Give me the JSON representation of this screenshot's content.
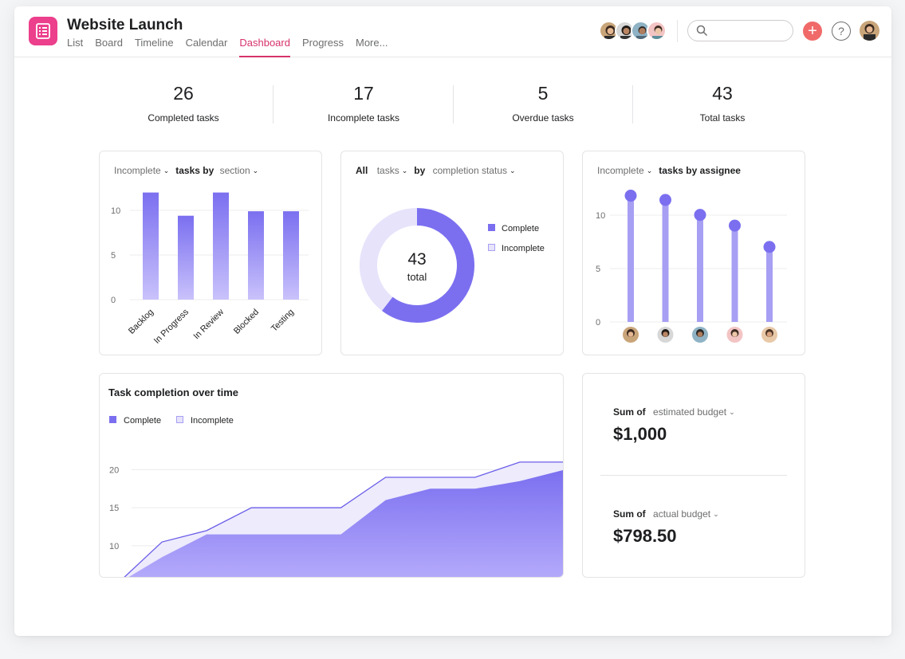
{
  "project": {
    "title": "Website Launch"
  },
  "tabs": [
    {
      "label": "List"
    },
    {
      "label": "Board"
    },
    {
      "label": "Timeline"
    },
    {
      "label": "Calendar"
    },
    {
      "label": "Dashboard",
      "active": true
    },
    {
      "label": "Progress"
    },
    {
      "label": "More..."
    }
  ],
  "icons": {
    "app": "checklist-icon",
    "search": "search-icon",
    "add": "plus-icon",
    "help": "question-icon"
  },
  "colors": {
    "brand": "#ec3f8c",
    "accent": "#d6336c",
    "complete": "#7b6ff0",
    "incomplete": "#e6e3fb",
    "add": "#f06a6a"
  },
  "stats": [
    {
      "value": "26",
      "label": "Completed tasks"
    },
    {
      "value": "17",
      "label": "Incomplete tasks"
    },
    {
      "value": "5",
      "label": "Overdue tasks"
    },
    {
      "value": "43",
      "label": "Total tasks"
    }
  ],
  "section_card": {
    "filter": "Incomplete",
    "title": "tasks by",
    "group": "section",
    "chart_data": {
      "type": "bar",
      "categories": [
        "Backlog",
        "In Progress",
        "In Review",
        "Blocked",
        "Testing"
      ],
      "values": [
        12,
        9.4,
        12,
        9.9,
        9.9
      ],
      "yticks": [
        0,
        5,
        10
      ],
      "ylim": [
        0,
        13
      ]
    }
  },
  "status_card": {
    "filter_all": "All",
    "filter_tasks": "tasks",
    "by": "by",
    "group": "completion status",
    "center_value": "43",
    "center_label": "total",
    "chart_data": {
      "type": "pie",
      "labels": [
        "Complete",
        "Incomplete"
      ],
      "values": [
        26,
        17
      ]
    }
  },
  "assignee_card": {
    "filter": "Incomplete",
    "title": "tasks by assignee",
    "chart_data": {
      "type": "bar",
      "categories": [
        "assignee-1",
        "assignee-2",
        "assignee-3",
        "assignee-4",
        "assignee-5"
      ],
      "values": [
        11.6,
        11.2,
        9.8,
        8.8,
        6.8
      ],
      "yticks": [
        0,
        5,
        10
      ],
      "ylim": [
        0,
        12.5
      ]
    }
  },
  "time_card": {
    "title": "Task completion over time",
    "chart_data": {
      "type": "area",
      "x": [
        0,
        1,
        2,
        3,
        4,
        5,
        6,
        7,
        8,
        9,
        10
      ],
      "series": [
        {
          "name": "Complete",
          "values": [
            5,
            8.5,
            11.5,
            11.5,
            11.5,
            11.5,
            16,
            17.5,
            17.5,
            18.5,
            20
          ]
        },
        {
          "name": "Incomplete",
          "values": [
            5,
            10.5,
            12,
            15,
            15,
            15,
            19,
            19,
            19,
            21,
            21
          ]
        }
      ],
      "yticks": [
        10,
        15,
        20
      ],
      "ylim": [
        5,
        22
      ]
    }
  },
  "budget": [
    {
      "prefix": "Sum of",
      "field": "estimated budget",
      "value": "$1,000"
    },
    {
      "prefix": "Sum of",
      "field": "actual budget",
      "value": "$798.50"
    }
  ]
}
